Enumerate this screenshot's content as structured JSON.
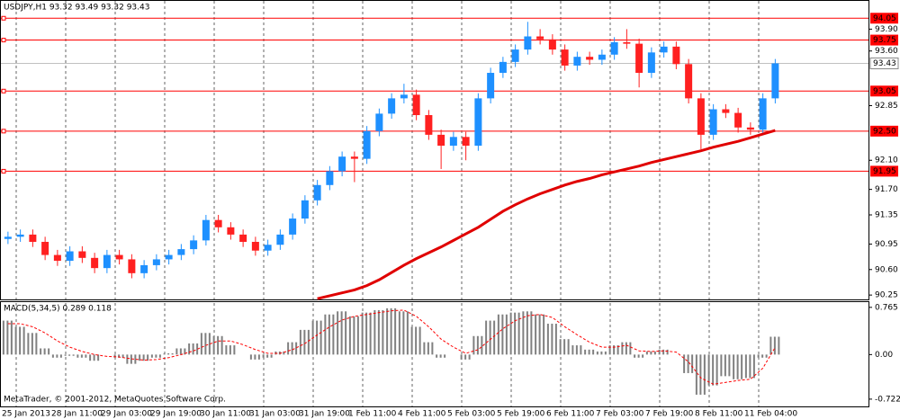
{
  "chart_data": [
    {
      "type": "candlestick",
      "title": "USDJPY,H1  93.32 93.49 93.32 93.43",
      "categories": [
        "25 Jan 2013",
        null,
        null,
        null,
        "28 Jan 11:00",
        null,
        null,
        null,
        "29 Jan 03:00",
        null,
        null,
        null,
        "29 Jan 19:00",
        null,
        null,
        null,
        "30 Jan 11:00",
        null,
        null,
        null,
        "31 Jan 03:00",
        null,
        null,
        null,
        "31 Jan 19:00",
        null,
        null,
        null,
        "1 Feb 11:00",
        null,
        null,
        null,
        "4 Feb 11:00",
        null,
        null,
        null,
        "5 Feb 03:00",
        null,
        null,
        null,
        "5 Feb 19:00",
        null,
        null,
        null,
        "6 Feb 11:00",
        null,
        null,
        null,
        "7 Feb 03:00",
        null,
        null,
        null,
        "7 Feb 19:00",
        null,
        null,
        null,
        "8 Feb 11:00",
        null,
        null,
        null,
        "11 Feb 04:00",
        null,
        null
      ],
      "open": [
        91.02,
        91.05,
        91.08,
        90.98,
        90.8,
        90.72,
        90.85,
        90.76,
        90.62,
        90.8,
        90.74,
        90.55,
        90.66,
        90.74,
        90.8,
        90.88,
        91.0,
        91.28,
        91.18,
        91.08,
        90.98,
        90.86,
        90.94,
        91.08,
        91.3,
        91.55,
        91.76,
        91.95,
        92.15,
        92.12,
        92.5,
        92.74,
        92.95,
        93.0,
        92.72,
        92.45,
        92.3,
        92.42,
        92.3,
        92.95,
        93.3,
        93.45,
        93.62,
        93.8,
        93.76,
        93.62,
        93.4,
        93.52,
        93.48,
        93.55,
        93.72,
        93.7,
        93.3,
        93.58,
        93.66,
        93.42,
        92.95,
        92.45,
        92.8,
        92.75,
        92.55,
        92.52,
        92.95
      ],
      "high": [
        91.12,
        91.15,
        91.15,
        91.05,
        90.87,
        90.92,
        90.92,
        90.83,
        90.87,
        90.87,
        90.81,
        90.73,
        90.81,
        90.87,
        90.95,
        91.07,
        91.35,
        91.35,
        91.25,
        91.15,
        91.05,
        91.01,
        91.15,
        91.37,
        91.62,
        91.83,
        92.02,
        92.22,
        92.22,
        92.57,
        92.81,
        93.02,
        93.15,
        93.07,
        92.79,
        92.52,
        92.49,
        92.49,
        93.02,
        93.37,
        93.52,
        93.69,
        94.0,
        93.9,
        93.83,
        93.69,
        93.59,
        93.59,
        93.62,
        93.79,
        93.9,
        93.77,
        93.65,
        93.73,
        93.73,
        93.49,
        93.02,
        92.87,
        92.87,
        92.82,
        92.62,
        93.02,
        93.49
      ],
      "low": [
        90.95,
        90.98,
        90.91,
        90.73,
        90.65,
        90.65,
        90.69,
        90.55,
        90.55,
        90.67,
        90.48,
        90.48,
        90.59,
        90.67,
        90.73,
        90.81,
        90.93,
        91.11,
        91.01,
        90.91,
        90.79,
        90.79,
        90.87,
        91.01,
        91.23,
        91.48,
        91.69,
        91.88,
        91.8,
        92.05,
        92.43,
        92.67,
        92.88,
        92.65,
        92.38,
        91.98,
        92.23,
        92.1,
        92.23,
        92.88,
        93.23,
        93.38,
        93.55,
        93.69,
        93.55,
        93.33,
        93.33,
        93.41,
        93.41,
        93.48,
        93.63,
        93.1,
        93.23,
        93.51,
        93.35,
        92.88,
        92.25,
        92.38,
        92.68,
        92.48,
        92.45,
        92.45,
        92.88
      ],
      "close": [
        91.05,
        91.08,
        90.98,
        90.8,
        90.72,
        90.85,
        90.76,
        90.62,
        90.8,
        90.74,
        90.55,
        90.66,
        90.74,
        90.8,
        90.88,
        91.0,
        91.28,
        91.18,
        91.08,
        90.98,
        90.86,
        90.94,
        91.08,
        91.3,
        91.55,
        91.76,
        91.95,
        92.15,
        92.12,
        92.5,
        92.74,
        92.95,
        93.0,
        92.72,
        92.45,
        92.3,
        92.42,
        92.3,
        92.95,
        93.3,
        93.45,
        93.62,
        93.8,
        93.76,
        93.62,
        93.4,
        93.52,
        93.48,
        93.55,
        93.72,
        93.7,
        93.3,
        93.58,
        93.66,
        93.42,
        92.95,
        92.45,
        92.8,
        92.75,
        92.55,
        92.52,
        92.95,
        93.43
      ],
      "up_color": "#1e90ff",
      "down_color": "#ff2020",
      "series": [
        {
          "color": "#e00000",
          "values": [
            null,
            null,
            null,
            null,
            null,
            null,
            null,
            null,
            null,
            null,
            null,
            null,
            null,
            null,
            null,
            null,
            null,
            null,
            null,
            null,
            null,
            null,
            null,
            null,
            null,
            90.2,
            90.24,
            90.28,
            90.32,
            90.38,
            90.46,
            90.56,
            90.66,
            90.75,
            90.83,
            90.91,
            91.0,
            91.09,
            91.18,
            91.29,
            91.4,
            91.49,
            91.57,
            91.64,
            91.7,
            91.76,
            91.81,
            91.85,
            91.9,
            91.94,
            91.98,
            92.02,
            92.07,
            92.11,
            92.15,
            92.19,
            92.23,
            92.28,
            92.32,
            92.36,
            92.41,
            92.46,
            92.51
          ]
        }
      ],
      "levels": [
        94.05,
        93.75,
        93.05,
        {
          "value": 92.5,
          "label": "92.50"
        },
        91.95
      ],
      "level_color": "#ff0000",
      "current_price": 93.43,
      "ylim": [
        90.19,
        94.3
      ],
      "yticks": [
        {
          "value": 93.9,
          "label": "93.90"
        },
        {
          "value": 93.6,
          "label": "93.60"
        },
        92.85,
        {
          "value": 92.1,
          "label": "92.10"
        },
        {
          "value": 91.7,
          "label": "91.70"
        },
        91.35,
        90.95,
        {
          "value": 90.6,
          "label": "90.60"
        },
        90.25
      ]
    },
    {
      "type": "macd",
      "title": "MACD(5,34,5) 0.289 0.118",
      "series": [
        {
          "style": "bar",
          "color": "#808080",
          "values": [
            0.55,
            0.45,
            0.35,
            0.1,
            -0.05,
            -0.02,
            -0.05,
            -0.1,
            0.0,
            -0.05,
            -0.15,
            -0.1,
            -0.05,
            0.02,
            0.1,
            0.18,
            0.35,
            0.3,
            0.15,
            0.0,
            -0.08,
            -0.05,
            0.05,
            0.2,
            0.4,
            0.55,
            0.65,
            0.7,
            0.62,
            0.68,
            0.72,
            0.75,
            0.7,
            0.45,
            0.2,
            -0.05,
            0.0,
            -0.08,
            0.3,
            0.55,
            0.65,
            0.68,
            0.7,
            0.65,
            0.5,
            0.25,
            0.15,
            0.08,
            0.05,
            0.15,
            0.2,
            -0.05,
            0.05,
            0.08,
            0.0,
            -0.3,
            -0.65,
            -0.5,
            -0.35,
            -0.4,
            -0.38,
            -0.05,
            0.289
          ]
        },
        {
          "style": "dashed",
          "color": "#ff0000",
          "values": [
            0.5,
            0.5,
            0.45,
            0.35,
            0.22,
            0.12,
            0.05,
            0.0,
            -0.03,
            -0.04,
            -0.07,
            -0.09,
            -0.08,
            -0.05,
            0.0,
            0.06,
            0.15,
            0.22,
            0.22,
            0.16,
            0.08,
            0.02,
            0.02,
            0.08,
            0.18,
            0.32,
            0.45,
            0.56,
            0.62,
            0.65,
            0.68,
            0.71,
            0.72,
            0.62,
            0.45,
            0.25,
            0.12,
            0.02,
            0.08,
            0.25,
            0.42,
            0.55,
            0.63,
            0.65,
            0.6,
            0.45,
            0.32,
            0.2,
            0.12,
            0.12,
            0.15,
            0.06,
            0.05,
            0.06,
            0.04,
            -0.12,
            -0.38,
            -0.48,
            -0.45,
            -0.42,
            -0.4,
            -0.22,
            0.118
          ]
        }
      ],
      "ylim": [
        -0.84,
        0.85
      ],
      "yticks": [
        0.765,
        {
          "value": 0,
          "label": "0.00"
        },
        -0.722
      ],
      "footer": "MetaTrader, © 2001-2012, MetaQuotes Software Corp."
    }
  ]
}
